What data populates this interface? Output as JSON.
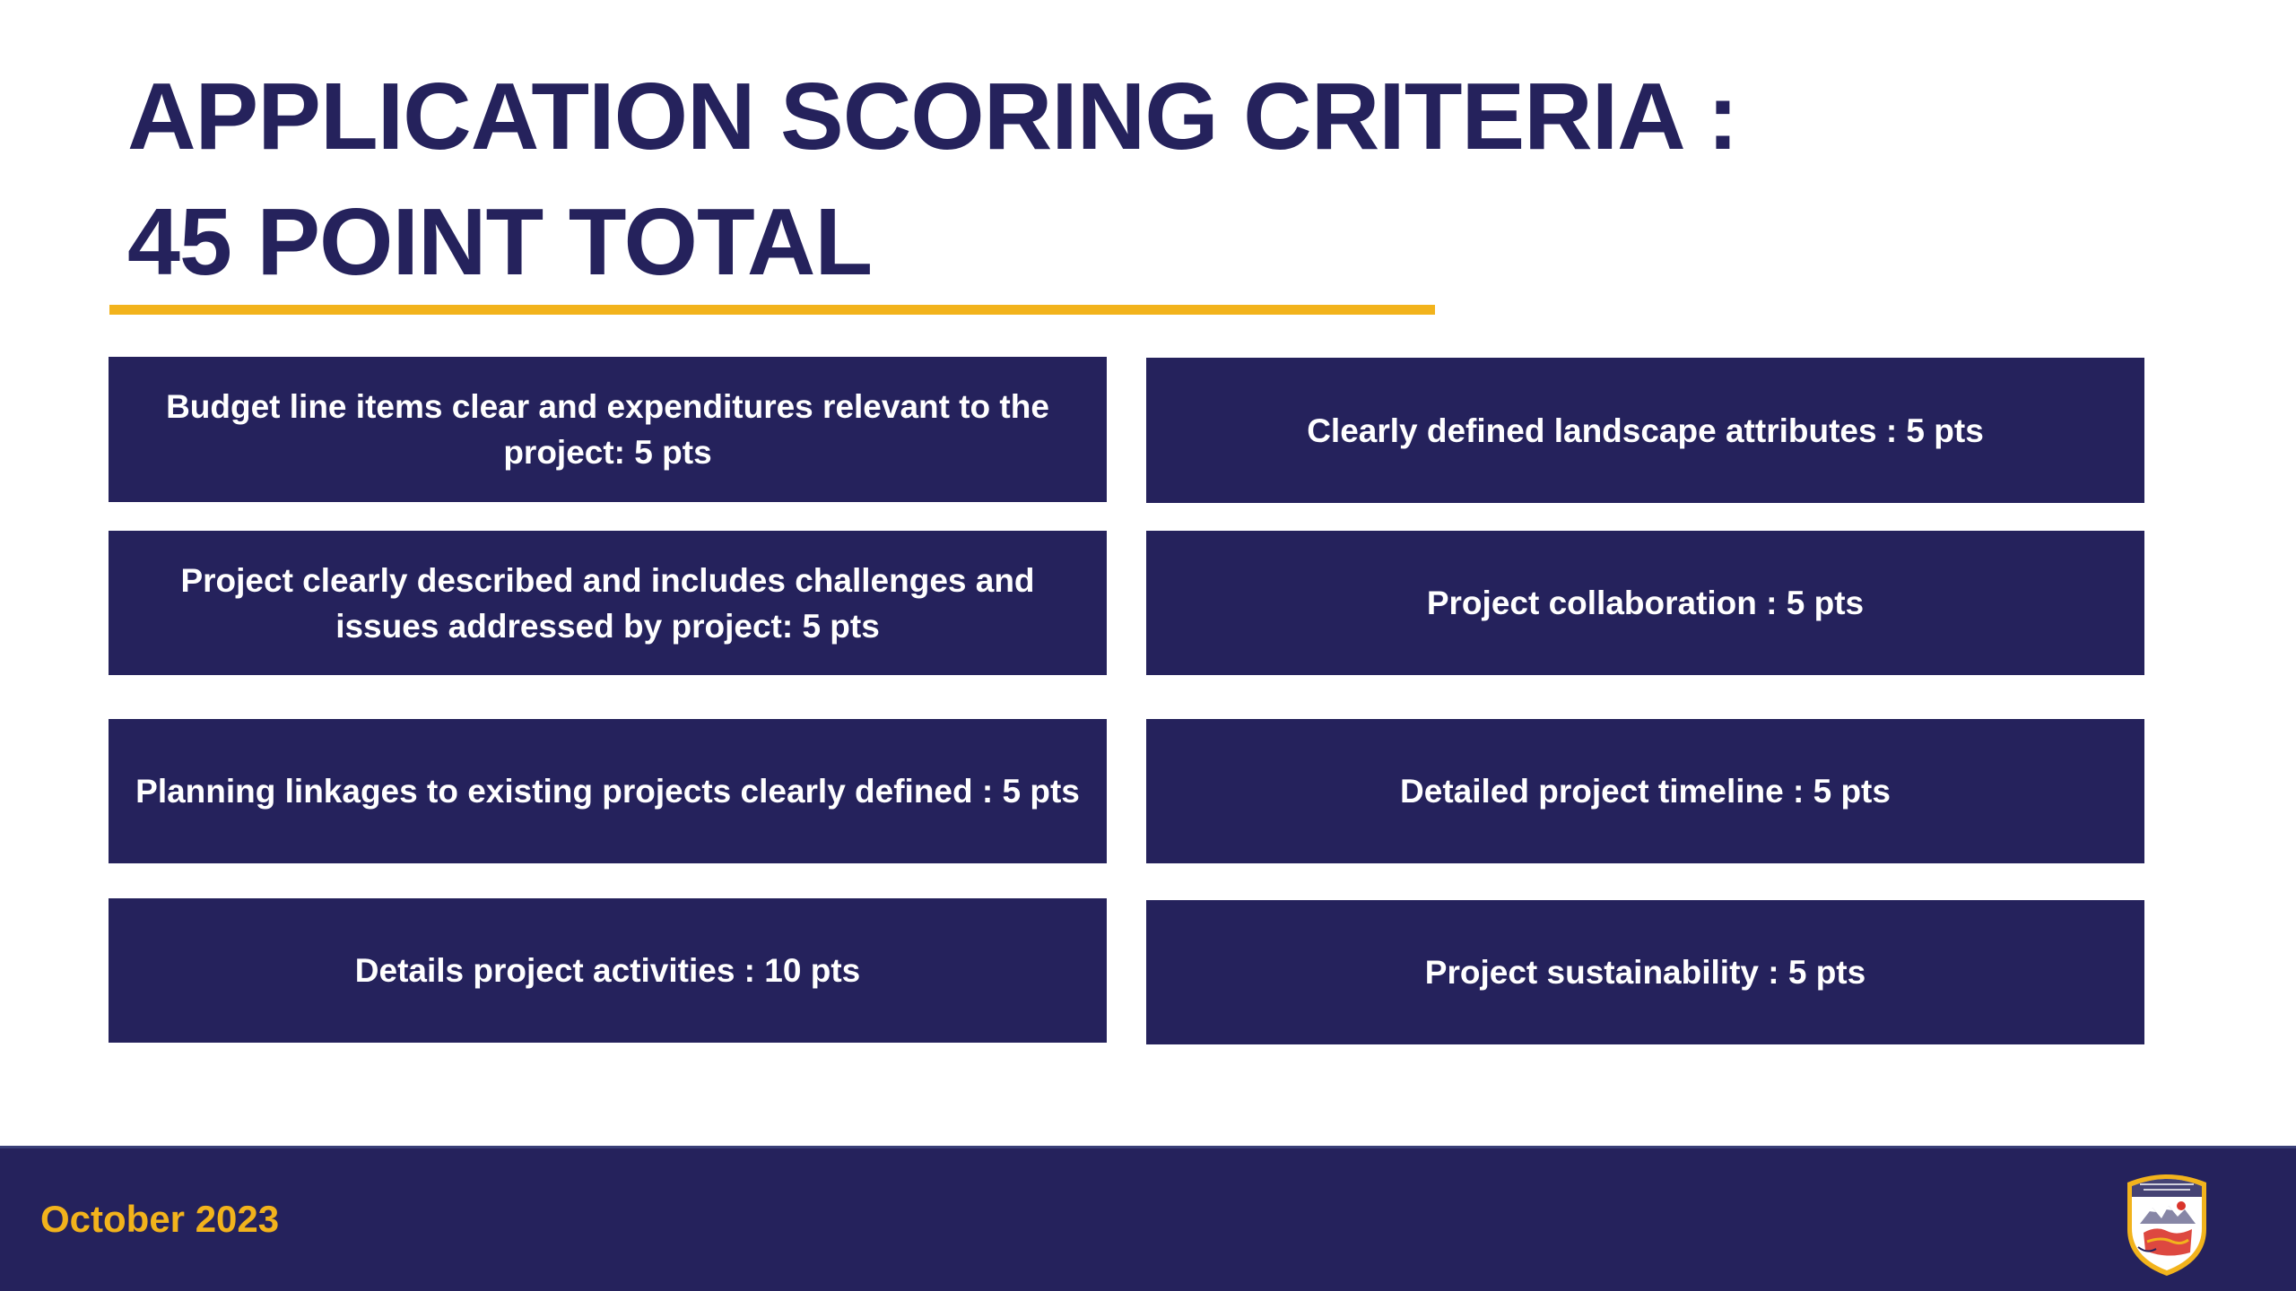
{
  "title": {
    "line1": "APPLICATION SCORING CRITERIA :",
    "line2": "45 POINT TOTAL"
  },
  "criteria": [
    {
      "text": "Budget line items clear and expenditures relevant to the project: 5 pts"
    },
    {
      "text": "Clearly defined landscape attributes : 5 pts"
    },
    {
      "text": "Project clearly described and includes challenges and issues addressed by project: 5 pts"
    },
    {
      "text": "Project collaboration : 5 pts"
    },
    {
      "text": "Planning linkages to existing projects clearly defined : 5 pts"
    },
    {
      "text": "Detailed project timeline : 5 pts"
    },
    {
      "text": "Details project activities : 10 pts"
    },
    {
      "text": "Project sustainability : 5 pts"
    }
  ],
  "footer": {
    "date": "October 2023",
    "logo_icon": "alaska-division-seal-icon"
  },
  "colors": {
    "navy": "#25225c",
    "gold": "#f2b31c",
    "text_on_navy": "#ffffff"
  }
}
